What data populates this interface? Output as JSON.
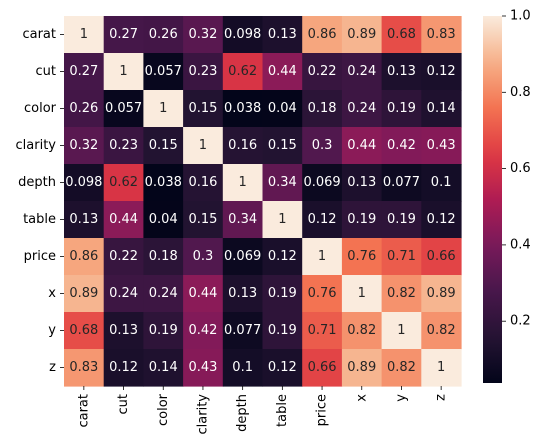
{
  "chart_data": {
    "type": "heatmap",
    "title": "",
    "xlabel": "",
    "ylabel": "",
    "row_labels": [
      "carat",
      "cut",
      "color",
      "clarity",
      "depth",
      "table",
      "price",
      "x",
      "y",
      "z"
    ],
    "col_labels": [
      "carat",
      "cut",
      "color",
      "clarity",
      "depth",
      "table",
      "price",
      "x",
      "y",
      "z"
    ],
    "values": [
      [
        1,
        0.27,
        0.26,
        0.32,
        0.098,
        0.13,
        0.86,
        0.89,
        0.68,
        0.83
      ],
      [
        0.27,
        1,
        0.057,
        0.23,
        0.62,
        0.44,
        0.22,
        0.24,
        0.13,
        0.12
      ],
      [
        0.26,
        0.057,
        1,
        0.15,
        0.038,
        0.04,
        0.18,
        0.24,
        0.19,
        0.14
      ],
      [
        0.32,
        0.23,
        0.15,
        1,
        0.16,
        0.15,
        0.3,
        0.44,
        0.42,
        0.43
      ],
      [
        0.098,
        0.62,
        0.038,
        0.16,
        1,
        0.34,
        0.069,
        0.13,
        0.077,
        0.1
      ],
      [
        0.13,
        0.44,
        0.04,
        0.15,
        0.34,
        1,
        0.12,
        0.19,
        0.19,
        0.12
      ],
      [
        0.86,
        0.22,
        0.18,
        0.3,
        0.069,
        0.12,
        1,
        0.76,
        0.71,
        0.66
      ],
      [
        0.89,
        0.24,
        0.24,
        0.44,
        0.13,
        0.19,
        0.76,
        1,
        0.82,
        0.89
      ],
      [
        0.68,
        0.13,
        0.19,
        0.42,
        0.077,
        0.19,
        0.71,
        0.82,
        1,
        0.82
      ],
      [
        0.83,
        0.12,
        0.14,
        0.43,
        0.1,
        0.12,
        0.66,
        0.89,
        0.82,
        1
      ]
    ],
    "annotations": [
      [
        "1",
        "0.27",
        "0.26",
        "0.32",
        "0.098",
        "0.13",
        "0.86",
        "0.89",
        "0.68",
        "0.83"
      ],
      [
        "0.27",
        "1",
        "0.057",
        "0.23",
        "0.62",
        "0.44",
        "0.22",
        "0.24",
        "0.13",
        "0.12"
      ],
      [
        "0.26",
        "0.057",
        "1",
        "0.15",
        "0.038",
        "0.04",
        "0.18",
        "0.24",
        "0.19",
        "0.14"
      ],
      [
        "0.32",
        "0.23",
        "0.15",
        "1",
        "0.16",
        "0.15",
        "0.3",
        "0.44",
        "0.42",
        "0.43"
      ],
      [
        "0.098",
        "0.62",
        "0.038",
        "0.16",
        "1",
        "0.34",
        "0.069",
        "0.13",
        "0.077",
        "0.1"
      ],
      [
        "0.13",
        "0.44",
        "0.04",
        "0.15",
        "0.34",
        "1",
        "0.12",
        "0.19",
        "0.19",
        "0.12"
      ],
      [
        "0.86",
        "0.22",
        "0.18",
        "0.3",
        "0.069",
        "0.12",
        "1",
        "0.76",
        "0.71",
        "0.66"
      ],
      [
        "0.89",
        "0.24",
        "0.24",
        "0.44",
        "0.13",
        "0.19",
        "0.76",
        "1",
        "0.82",
        "0.89"
      ],
      [
        "0.68",
        "0.13",
        "0.19",
        "0.42",
        "0.077",
        "0.19",
        "0.71",
        "0.82",
        "1",
        "0.82"
      ],
      [
        "0.83",
        "0.12",
        "0.14",
        "0.43",
        "0.1",
        "0.12",
        "0.66",
        "0.89",
        "0.82",
        "1"
      ]
    ],
    "colormap": "rocket",
    "vmin": 0.038,
    "vmax": 1,
    "colorbar": {
      "ticks": [
        0.2,
        0.4,
        0.6,
        0.8,
        1.0
      ],
      "tick_labels": [
        "0.2",
        "0.4",
        "0.6",
        "0.8",
        "1.0"
      ]
    },
    "annotation_colors": {
      "light": "#ffffff",
      "dark": "#262626"
    },
    "grid": false
  }
}
